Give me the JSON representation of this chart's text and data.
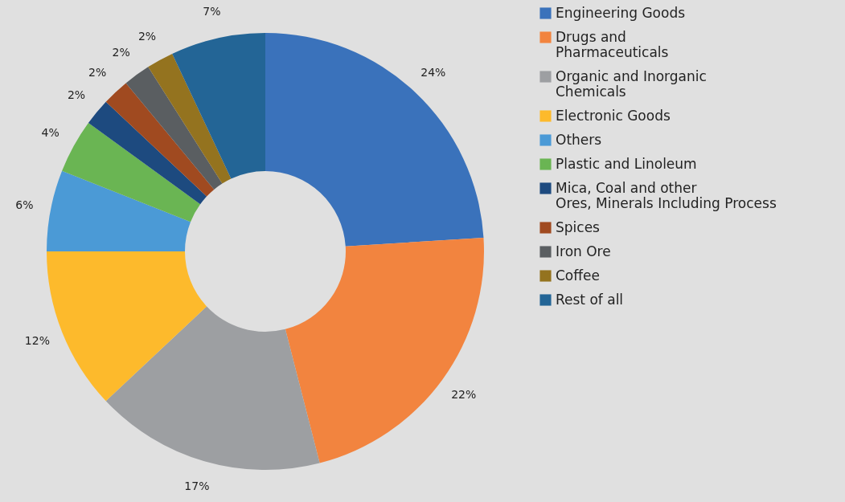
{
  "chart_data": {
    "type": "donut",
    "categories": [
      "Engineering Goods",
      "Drugs and Pharmaceuticals",
      "Organic and Inorganic Chemicals",
      "Electronic Goods",
      "Others",
      "Plastic and Linoleum",
      "Mica, Coal and other Ores, Minerals Including Process",
      "Spices",
      "Iron Ore",
      "Coffee",
      "Rest of all"
    ],
    "values": [
      24,
      22,
      17,
      12,
      6,
      4,
      2,
      2,
      2,
      2,
      7
    ],
    "value_labels": [
      "24%",
      "22%",
      "17%",
      "12%",
      "6%",
      "4%",
      "2%",
      "2%",
      "2%",
      "2%",
      "7%"
    ],
    "colors": [
      "#3a72bb",
      "#f2843f",
      "#9d9fa2",
      "#fdba2c",
      "#4b9ad6",
      "#6ab553",
      "#1d4a7f",
      "#a04a20",
      "#5a5e61",
      "#94731f",
      "#236596"
    ],
    "legend": "right"
  }
}
